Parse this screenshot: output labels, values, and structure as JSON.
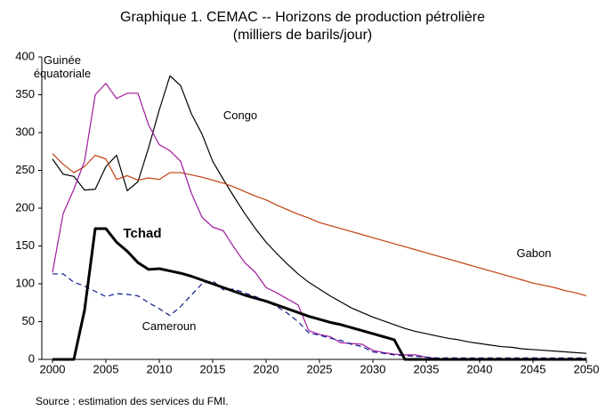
{
  "chart_data": {
    "type": "line",
    "title": "Graphique 1. CEMAC -- Horizons de production pétrolière",
    "subtitle": "(milliers de barils/jour)",
    "note": "Source : estimation des services du FMI.",
    "x": [
      2000,
      2001,
      2002,
      2003,
      2004,
      2005,
      2006,
      2007,
      2008,
      2009,
      2010,
      2011,
      2012,
      2013,
      2014,
      2015,
      2016,
      2017,
      2018,
      2019,
      2020,
      2021,
      2022,
      2023,
      2024,
      2025,
      2026,
      2027,
      2028,
      2029,
      2030,
      2031,
      2032,
      2033,
      2034,
      2035,
      2036,
      2037,
      2038,
      2039,
      2040,
      2041,
      2042,
      2043,
      2044,
      2045,
      2046,
      2047,
      2048,
      2049,
      2050
    ],
    "xlim": [
      1999,
      2050
    ],
    "xticks": [
      2000,
      2005,
      2010,
      2015,
      2020,
      2025,
      2030,
      2035,
      2040,
      2045,
      2050
    ],
    "ylim": [
      0,
      400
    ],
    "yticks": [
      0,
      50,
      100,
      150,
      200,
      250,
      300,
      350,
      400
    ],
    "grid": false,
    "series": [
      {
        "name": "Congo",
        "color": "#000000",
        "width": 1.2,
        "dash": false,
        "values": [
          265,
          245,
          242,
          224,
          225,
          255,
          270,
          223,
          235,
          280,
          330,
          375,
          362,
          325,
          298,
          262,
          238,
          215,
          193,
          173,
          155,
          140,
          126,
          113,
          102,
          93,
          84,
          76,
          68,
          62,
          56,
          51,
          46,
          41,
          37,
          34,
          31,
          28,
          26,
          23,
          21,
          19,
          17,
          16,
          14,
          13,
          12,
          11,
          10,
          9,
          8
        ]
      },
      {
        "name": "Gabon",
        "color": "#c04010",
        "width": 1.2,
        "dash": false,
        "values": [
          272,
          258,
          247,
          255,
          270,
          265,
          238,
          243,
          237,
          240,
          238,
          247,
          247,
          244,
          241,
          237,
          233,
          228,
          222,
          216,
          211,
          204,
          198,
          192,
          187,
          181,
          177,
          173,
          169,
          165,
          161,
          157,
          153,
          149,
          145,
          141,
          137,
          133,
          129,
          125,
          121,
          117,
          113,
          109,
          105,
          101,
          98,
          95,
          91,
          88,
          84
        ]
      },
      {
        "name": "Guinée équatoriale",
        "color": "#a0189c",
        "width": 1.2,
        "dash": false,
        "values": [
          115,
          193,
          225,
          262,
          350,
          365,
          345,
          352,
          352,
          310,
          284,
          276,
          262,
          220,
          188,
          175,
          170,
          148,
          128,
          115,
          95,
          88,
          80,
          72,
          38,
          33,
          30,
          22,
          21,
          20,
          12,
          9,
          7,
          6,
          6,
          3,
          1,
          1,
          1,
          1,
          1,
          1,
          1,
          1,
          1,
          1,
          1,
          1,
          1,
          1,
          1
        ]
      },
      {
        "name": "Cameroun",
        "color": "#0a1a8c",
        "width": 1.2,
        "dash": true,
        "values": [
          113,
          113,
          102,
          97,
          90,
          83,
          87,
          86,
          84,
          75,
          67,
          58,
          70,
          85,
          100,
          104,
          92,
          93,
          88,
          83,
          77,
          70,
          61,
          50,
          35,
          32,
          28,
          25,
          20,
          17,
          10,
          8,
          6,
          5,
          4,
          3,
          2,
          2,
          2,
          2,
          2,
          2,
          2,
          2,
          2,
          2,
          2,
          2,
          2,
          2,
          2
        ]
      },
      {
        "name": "Tchad",
        "color": "#000000",
        "width": 3,
        "dash": false,
        "values": [
          0,
          0,
          0,
          65,
          173,
          173,
          155,
          143,
          128,
          119,
          120,
          117,
          114,
          110,
          105,
          100,
          95,
          90,
          85,
          81,
          77,
          72,
          67,
          62,
          57,
          53,
          49,
          46,
          42,
          38,
          34,
          30,
          26,
          0,
          0,
          0,
          0,
          0,
          0,
          0,
          0,
          0,
          0,
          0,
          0,
          0,
          0,
          0,
          0,
          0,
          0
        ]
      }
    ]
  }
}
